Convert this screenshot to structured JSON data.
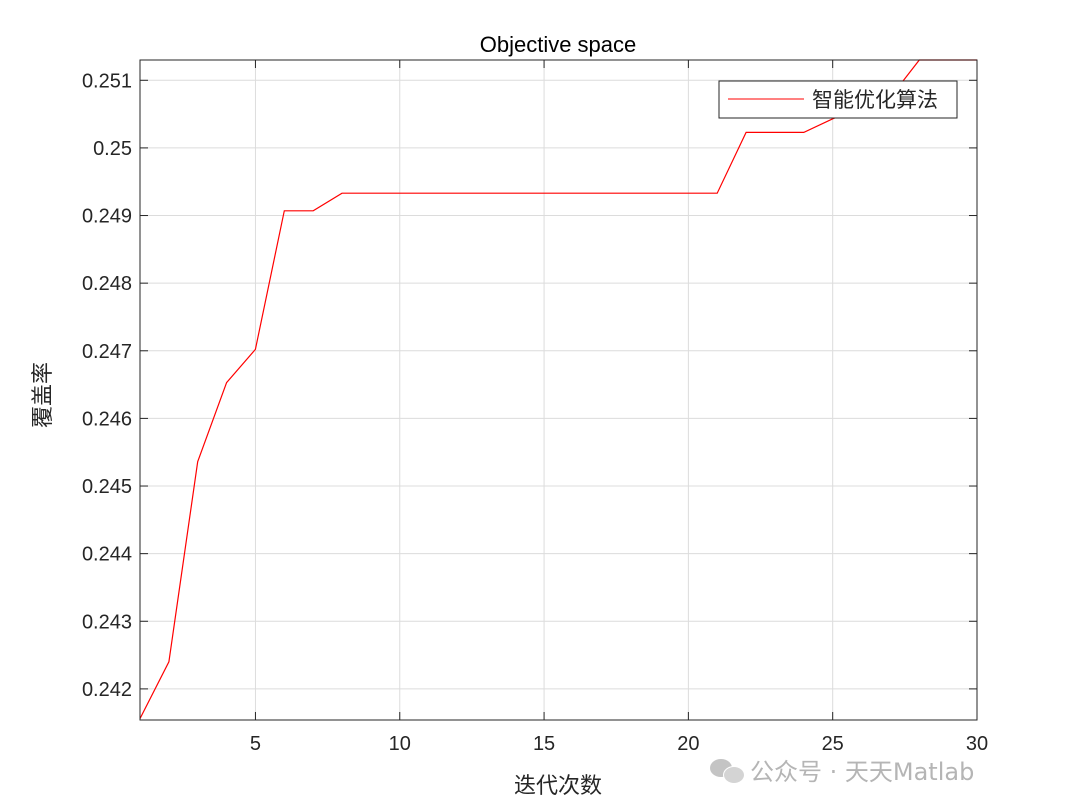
{
  "chart_data": {
    "type": "line",
    "title": "Objective space",
    "xlabel": "迭代次数",
    "ylabel": "覆盖率",
    "xlim": [
      1,
      30
    ],
    "ylim": [
      0.24154,
      0.2513
    ],
    "xticks": [
      5,
      10,
      15,
      20,
      25,
      30
    ],
    "xtick_labels": [
      "5",
      "10",
      "15",
      "20",
      "25",
      "30"
    ],
    "yticks": [
      0.242,
      0.243,
      0.244,
      0.245,
      0.246,
      0.247,
      0.248,
      0.249,
      0.25,
      0.251
    ],
    "ytick_labels": [
      "0.242",
      "0.243",
      "0.244",
      "0.245",
      "0.246",
      "0.247",
      "0.248",
      "0.249",
      "0.25",
      "0.251"
    ],
    "grid": true,
    "legend_position": "top-right",
    "series": [
      {
        "name": "智能优化算法",
        "color": "#ff0000",
        "x": [
          1,
          2,
          3,
          4,
          5,
          6,
          7,
          8,
          9,
          10,
          11,
          12,
          13,
          14,
          15,
          16,
          17,
          18,
          19,
          20,
          21,
          22,
          23,
          24,
          25,
          26,
          27,
          28,
          29,
          30
        ],
        "y": [
          0.24156,
          0.2424,
          0.24536,
          0.24653,
          0.24702,
          0.24907,
          0.24907,
          0.24933,
          0.24933,
          0.24933,
          0.24933,
          0.24933,
          0.24933,
          0.24933,
          0.24933,
          0.24933,
          0.24933,
          0.24933,
          0.24933,
          0.24933,
          0.24933,
          0.25023,
          0.25023,
          0.25023,
          0.25043,
          0.2506,
          0.25075,
          0.2513,
          0.2513,
          0.2513
        ]
      }
    ]
  },
  "watermark": {
    "text": "公众号 · 天天Matlab",
    "icon": "wechat-icon"
  }
}
